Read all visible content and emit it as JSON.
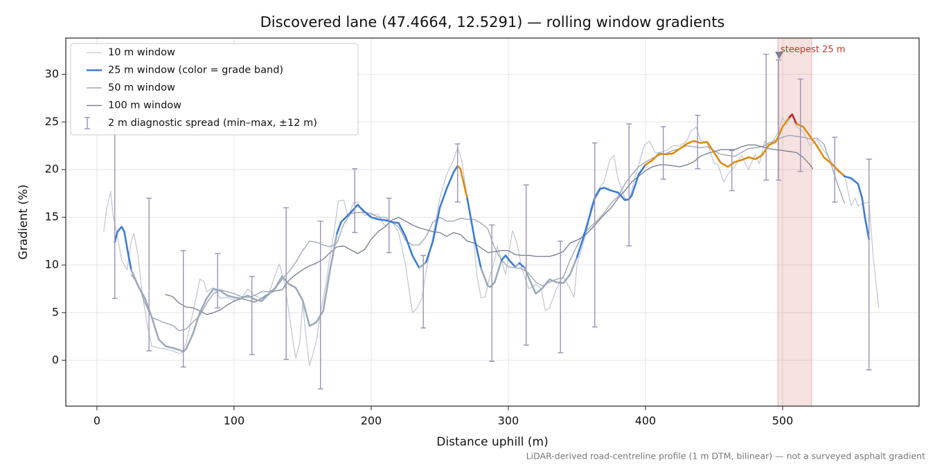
{
  "chart_data": {
    "type": "line",
    "title": "Discovered lane (47.4664, 12.5291) — rolling window gradients",
    "xlabel": "Distance uphill (m)",
    "ylabel": "Gradient (%)",
    "note": "LiDAR-derived road-centreline profile (1 m DTM, bilinear) — not a surveyed asphalt gradient",
    "xlim": [
      -22.7,
      599.5
    ],
    "ylim": [
      -4.8,
      33.8
    ],
    "xticks": [
      0,
      100,
      200,
      300,
      400,
      500
    ],
    "yticks": [
      0,
      5,
      10,
      15,
      20,
      25,
      30
    ],
    "grid": true,
    "legend": "upper left",
    "series": [
      {
        "name": "10 m window",
        "color": "#c3c9d3",
        "width": 1.3,
        "x": [
          5,
          7,
          10,
          12,
          15,
          18,
          22,
          25,
          27,
          30,
          33,
          37,
          40,
          45,
          50,
          55,
          60,
          62,
          65,
          70,
          75,
          78,
          80,
          85,
          90,
          95,
          100,
          105,
          110,
          115,
          120,
          125,
          130,
          133,
          137,
          140,
          143,
          145,
          148,
          150,
          153,
          155,
          160,
          163,
          167,
          170,
          173,
          176,
          180,
          183,
          187,
          190,
          195,
          200,
          205,
          210,
          215,
          220,
          225,
          230,
          233,
          237,
          240,
          245,
          250,
          255,
          260,
          263,
          266,
          270,
          274,
          277,
          280,
          283,
          286,
          290,
          292,
          295,
          298,
          303,
          306,
          310,
          315,
          320,
          324,
          327,
          330,
          335,
          340,
          345,
          348,
          350,
          355,
          358,
          360,
          364,
          367,
          370,
          374,
          377,
          380,
          385,
          388,
          392,
          395,
          399,
          403,
          407,
          410,
          415,
          420,
          425,
          430,
          433,
          437,
          440,
          445,
          450,
          453,
          457,
          460,
          465,
          470,
          475,
          480,
          483,
          487,
          490,
          493,
          497,
          500,
          503,
          507,
          510,
          515,
          520,
          525,
          530,
          535,
          540,
          545,
          550,
          553,
          555,
          560,
          563,
          566,
          570
        ],
        "values": [
          13.5,
          15.8,
          17.7,
          15,
          13,
          10.5,
          9.5,
          12.5,
          13.3,
          11,
          7,
          3.5,
          1.5,
          1.3,
          1.2,
          1,
          0.7,
          0.8,
          1.8,
          5,
          8.5,
          8.3,
          7.2,
          7.6,
          6.5,
          6.6,
          6.3,
          6.4,
          7.5,
          6.8,
          6.5,
          6.8,
          9,
          10.1,
          8,
          5,
          2,
          0.2,
          2,
          6,
          1.8,
          -0.6,
          2,
          5,
          8,
          11,
          13.5,
          16.7,
          16.8,
          15,
          16.5,
          16.6,
          15.2,
          15.3,
          15.3,
          14.1,
          14.6,
          13.4,
          10,
          5,
          5.4,
          6.5,
          9.3,
          13,
          17,
          19.5,
          21,
          22.3,
          21,
          17,
          14,
          9,
          6.6,
          6.6,
          8.5,
          10.5,
          12,
          10.5,
          9,
          13.6,
          12.5,
          9.5,
          7.5,
          8,
          7.5,
          5.2,
          5.5,
          7.5,
          8.8,
          7.5,
          6.6,
          10,
          12.5,
          14,
          16,
          17.5,
          18.2,
          18.8,
          21,
          21.5,
          19,
          17,
          16.7,
          19,
          20.5,
          22.5,
          23,
          21.8,
          21.8,
          22,
          22.5,
          22.5,
          23,
          24,
          24.5,
          23.1,
          22.8,
          20.7,
          20.5,
          18.7,
          19.5,
          20.3,
          21.5,
          20,
          21.6,
          20.6,
          23,
          22.4,
          23,
          24,
          25.5,
          24.7,
          25.8,
          24.5,
          24,
          22.5,
          23.1,
          22,
          21,
          19.8,
          19.5,
          16.2,
          17,
          16.2,
          16.5,
          16.6,
          11,
          5.5
        ]
      },
      {
        "name": "25 m window (color = grade band)",
        "color": "#3a7bd5",
        "width": 2.6,
        "band_edges": [
          10,
          20,
          25
        ],
        "band_colors": [
          "#9aabbb",
          "#3a7bd5",
          "#e08a0b",
          "#c0202e"
        ],
        "x": [
          13,
          15,
          18,
          20,
          23,
          25,
          28,
          30,
          35,
          40,
          45,
          50,
          55,
          60,
          63,
          65,
          70,
          75,
          80,
          85,
          90,
          95,
          100,
          105,
          110,
          115,
          120,
          125,
          130,
          135,
          140,
          145,
          150,
          153,
          155,
          160,
          165,
          170,
          175,
          178,
          185,
          190,
          195,
          200,
          205,
          210,
          215,
          220,
          225,
          230,
          235,
          240,
          245,
          250,
          255,
          260,
          263,
          265,
          270,
          275,
          280,
          285,
          287,
          290,
          295,
          298,
          300,
          305,
          308,
          312,
          315,
          320,
          325,
          330,
          335,
          340,
          345,
          350,
          355,
          360,
          363,
          367,
          370,
          375,
          380,
          385,
          388,
          390,
          395,
          400,
          405,
          410,
          415,
          420,
          425,
          430,
          435,
          440,
          445,
          450,
          455,
          460,
          465,
          470,
          475,
          480,
          485,
          490,
          495,
          500,
          505,
          507,
          510,
          515,
          520,
          525,
          530,
          535,
          540,
          545,
          550,
          555,
          558,
          560,
          563
        ],
        "values": [
          12.4,
          13.5,
          14,
          13.5,
          11,
          9.5,
          8.5,
          7.8,
          6.5,
          4.5,
          2.2,
          1.5,
          1.3,
          1.1,
          0.9,
          1.2,
          2.8,
          5,
          6.5,
          7.5,
          7.3,
          6.8,
          6.6,
          6.5,
          6.8,
          6.4,
          6.2,
          6.9,
          7.6,
          8.8,
          8,
          7.6,
          6.3,
          4.7,
          3.6,
          4,
          5.2,
          9.5,
          13.3,
          14.5,
          15.5,
          16.3,
          15.6,
          15,
          14.8,
          14.7,
          14.5,
          14.4,
          13,
          11,
          9.7,
          10.3,
          12.5,
          16,
          18,
          19.7,
          20.4,
          20.1,
          17,
          13,
          9.7,
          7.8,
          7.7,
          8.2,
          10.5,
          11,
          10.6,
          9.8,
          10.2,
          9.7,
          8.6,
          7,
          7.6,
          8.5,
          8.2,
          8.1,
          9,
          10.8,
          13,
          15.5,
          17,
          18,
          18.1,
          17.8,
          17.6,
          16.8,
          16.9,
          17.3,
          19.5,
          20.5,
          21,
          21.7,
          21.6,
          21.7,
          22.2,
          22.7,
          23,
          22.8,
          22.9,
          21.8,
          20.7,
          20.3,
          20.8,
          21,
          21.3,
          21.1,
          21.5,
          22.6,
          22.9,
          24.5,
          25.5,
          25.8,
          24.8,
          24.5,
          23.5,
          22.5,
          21.3,
          20.7,
          20,
          19.3,
          19.1,
          18.5,
          17,
          15,
          12.7
        ]
      },
      {
        "name": "50 m window",
        "color": "#9fa8b7",
        "width": 1.4,
        "x": [
          25,
          30,
          35,
          40,
          45,
          50,
          55,
          60,
          65,
          70,
          75,
          80,
          85,
          90,
          95,
          100,
          105,
          110,
          115,
          120,
          125,
          130,
          135,
          140,
          145,
          150,
          155,
          160,
          165,
          170,
          175,
          180,
          185,
          190,
          195,
          200,
          205,
          210,
          215,
          220,
          225,
          230,
          235,
          240,
          245,
          250,
          255,
          260,
          265,
          270,
          275,
          280,
          285,
          290,
          295,
          300,
          305,
          310,
          315,
          320,
          325,
          330,
          335,
          340,
          345,
          350,
          355,
          360,
          365,
          370,
          375,
          380,
          385,
          390,
          395,
          400,
          405,
          410,
          415,
          420,
          425,
          430,
          435,
          440,
          445,
          450,
          455,
          460,
          465,
          470,
          475,
          480,
          485,
          490,
          495,
          500,
          505,
          510,
          515,
          520,
          525,
          530,
          535,
          540,
          545
        ],
        "values": [
          9,
          8,
          6,
          4.5,
          4.2,
          3.9,
          3.7,
          3.1,
          3.3,
          4,
          4.7,
          6,
          7,
          7.4,
          7.2,
          7,
          6.7,
          6.6,
          6.8,
          7.2,
          7.2,
          7.5,
          8.5,
          9.3,
          10.3,
          11.5,
          12.5,
          12.4,
          12.1,
          11.9,
          12.3,
          14.3,
          15.4,
          15.5,
          15.5,
          15.4,
          15,
          15,
          14.5,
          14,
          12.6,
          12.1,
          12.1,
          13,
          14.5,
          15,
          14.6,
          14.6,
          14.9,
          14.8,
          14.8,
          14.4,
          13.8,
          11.8,
          10.5,
          9.8,
          9.7,
          9.6,
          9.1,
          8.2,
          7.8,
          8.2,
          8.5,
          8.7,
          10.5,
          12,
          13.3,
          14,
          14.7,
          15.5,
          16.5,
          17.2,
          18.5,
          19.5,
          20.3,
          20.8,
          21.2,
          21.5,
          21.7,
          22,
          22.2,
          22.5,
          22.4,
          22.3,
          22.4,
          22,
          21.6,
          21.5,
          21.4,
          21.8,
          22.2,
          22.3,
          22.4,
          22.8,
          23.1,
          23.4,
          23.6,
          23.5,
          23.4,
          23.2,
          23.3,
          22.7,
          20.7,
          18.5,
          16.5
        ]
      },
      {
        "name": "100 m window",
        "color": "#7a8292",
        "width": 1.4,
        "x": [
          50,
          55,
          60,
          65,
          70,
          75,
          80,
          85,
          90,
          95,
          100,
          105,
          110,
          115,
          120,
          125,
          130,
          135,
          140,
          145,
          150,
          155,
          160,
          165,
          170,
          175,
          180,
          185,
          190,
          195,
          200,
          205,
          210,
          215,
          220,
          225,
          230,
          235,
          240,
          245,
          250,
          255,
          260,
          265,
          270,
          275,
          280,
          285,
          290,
          295,
          300,
          305,
          310,
          315,
          320,
          325,
          330,
          335,
          340,
          345,
          350,
          355,
          360,
          365,
          370,
          375,
          380,
          385,
          390,
          395,
          400,
          405,
          410,
          415,
          420,
          425,
          430,
          435,
          440,
          445,
          450,
          455,
          460,
          465,
          470,
          475,
          480,
          485,
          490,
          495,
          500,
          505,
          510,
          515,
          520,
          522
        ],
        "values": [
          6.9,
          6.7,
          6,
          5.6,
          5.5,
          5.2,
          4.8,
          5,
          5.3,
          5.8,
          6.2,
          6.5,
          6.3,
          6.1,
          6.5,
          7,
          7.3,
          7.4,
          8.4,
          9,
          9.5,
          9.9,
          10.2,
          10.6,
          11.3,
          11.9,
          12,
          11.6,
          11.2,
          11.6,
          12.7,
          13.5,
          14,
          14.7,
          15,
          14.6,
          14.2,
          13.9,
          13.7,
          13.5,
          13.4,
          13,
          13.4,
          13.2,
          12.5,
          12.3,
          11.8,
          11.3,
          11.4,
          11.5,
          11.5,
          11.1,
          11,
          11,
          10.9,
          10.9,
          10.9,
          11.1,
          11.4,
          12.3,
          12.6,
          13,
          13.7,
          14.5,
          15.3,
          16,
          17,
          17.8,
          18.7,
          19.3,
          19.9,
          20.3,
          20.5,
          20.5,
          20.4,
          20.3,
          20.5,
          20.8,
          21.4,
          21.7,
          21.9,
          22.1,
          22.1,
          22.1,
          22.4,
          22.6,
          22.6,
          22.4,
          22.2,
          22.1,
          22,
          21.9,
          21.8,
          21.3,
          20.5,
          20.1
        ]
      }
    ],
    "error_bars": {
      "name": "2 m diagnostic spread (min–max, ±12 m)",
      "color": "#9a92b6",
      "x": [
        13,
        38,
        63,
        88,
        113,
        138,
        163,
        188,
        213,
        238,
        263,
        288,
        313,
        338,
        363,
        388,
        413,
        438,
        463,
        488,
        497,
        513,
        538,
        563
      ],
      "low": [
        6.5,
        1,
        -0.7,
        5.5,
        0.6,
        0.1,
        -3,
        13.4,
        11.3,
        3.4,
        16.6,
        -0.1,
        1.6,
        0.8,
        3.5,
        12,
        19,
        20.1,
        17.8,
        18.9,
        18.9,
        19.8,
        16.6,
        -1
      ],
      "high": [
        26,
        17,
        11.5,
        11.2,
        8.8,
        16,
        14.6,
        20.1,
        17,
        11,
        22.7,
        14.2,
        18.4,
        12.5,
        22.8,
        24.8,
        24.5,
        25.7,
        22,
        32.1,
        31.5,
        29.5,
        23.4,
        21.1
      ]
    },
    "highlight": {
      "label": "steepest 25 m",
      "color": "#c0392b",
      "x_range": [
        496.5,
        521.2
      ],
      "marker_x": 497.5,
      "marker_y": 32
    }
  }
}
